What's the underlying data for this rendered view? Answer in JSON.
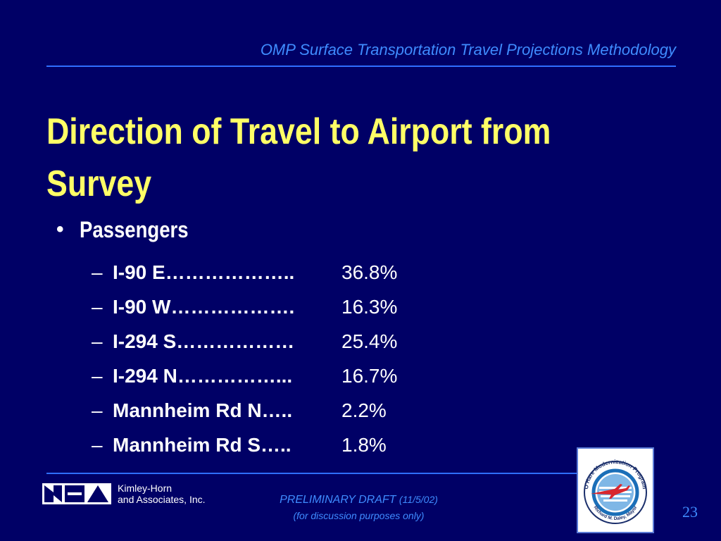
{
  "header": {
    "title": "OMP Surface Transportation Travel Projections Methodology"
  },
  "slide": {
    "title": "Direction of Travel to Airport from Survey",
    "bullet": "Passengers",
    "items": [
      {
        "label": "I-90 E………………..",
        "value": "36.8%"
      },
      {
        "label": "I-90 W……………….",
        "value": "16.3%"
      },
      {
        "label": "I-294 S………………",
        "value": "25.4%"
      },
      {
        "label": "I-294 N……………...",
        "value": "16.7%"
      },
      {
        "label": "Mannheim Rd N…..",
        "value": "2.2%"
      },
      {
        "label": "Mannheim Rd S…..",
        "value": "1.8%"
      }
    ],
    "dash": "–"
  },
  "footer": {
    "firm_line1": "Kimley-Horn",
    "firm_line2": "and Associates, Inc.",
    "draft_label": "PRELIMINARY DRAFT",
    "draft_date": "(11/5/02)",
    "draft_note": "(for discussion purposes only)",
    "badge_top_text": "O'Hare Modernization Program",
    "badge_bottom_text": "Richard M. Daley, Mayor",
    "page_number": "23"
  },
  "colors": {
    "background": "#000066",
    "title": "#ffff66",
    "accent": "#3f8cff",
    "text": "#ffffff"
  }
}
